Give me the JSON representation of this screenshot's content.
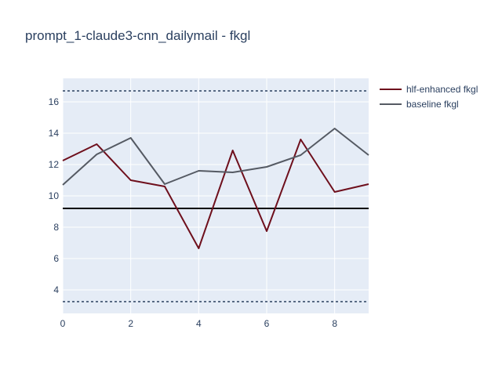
{
  "chart_data": {
    "type": "line",
    "title": "prompt_1-claude3-cnn_dailymail - fkgl",
    "xlabel": "",
    "ylabel": "",
    "x": [
      0,
      1,
      2,
      3,
      4,
      5,
      6,
      7,
      8,
      9
    ],
    "xlim": [
      0,
      9
    ],
    "ylim": [
      2.5,
      17.5
    ],
    "xticks": [
      0,
      2,
      4,
      6,
      8
    ],
    "yticks": [
      4,
      6,
      8,
      10,
      12,
      14,
      16
    ],
    "grid": true,
    "legend_position": "top-right",
    "series": [
      {
        "name": "hlf-enhanced fkgl",
        "color": "#6e0f1c",
        "values": [
          12.25,
          13.3,
          11.0,
          10.6,
          6.65,
          12.9,
          7.75,
          13.6,
          10.25,
          10.75
        ]
      },
      {
        "name": "baseline fkgl",
        "color": "#555a63",
        "values": [
          10.7,
          12.65,
          13.7,
          10.75,
          11.6,
          11.5,
          11.85,
          12.6,
          14.3,
          12.6
        ]
      }
    ],
    "reference_lines": [
      {
        "y": 16.7,
        "style": "dotted",
        "color": "#2a3f5f"
      },
      {
        "y": 9.2,
        "style": "solid",
        "color": "#000000"
      },
      {
        "y": 3.25,
        "style": "dotted",
        "color": "#2a3f5f"
      }
    ]
  }
}
